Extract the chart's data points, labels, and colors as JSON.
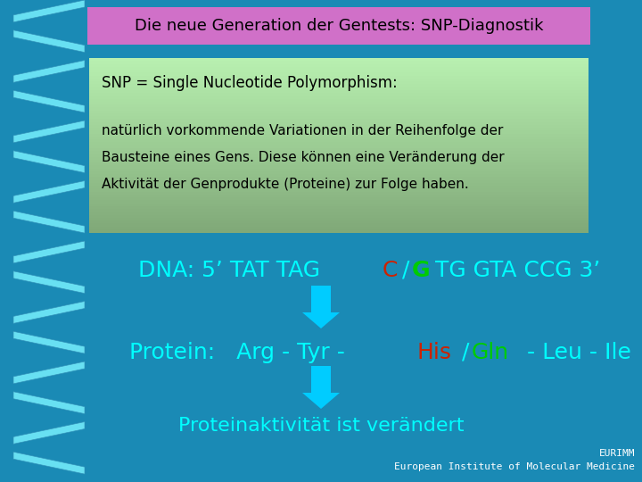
{
  "bg_color": "#1a8ab5",
  "title_text": "Die neue Generation der Gentests: SNP-Diagnostik",
  "title_box_color": "#d070c8",
  "title_text_color": "#000000",
  "info_line1": "SNP = Single Nucleotide Polymorphism:",
  "info_line2": "natürlich vorkommende Variationen in der Reihenfolge der",
  "info_line3": "Bausteine eines Gens. Diese können eine Veränderung der",
  "info_line4": "Aktivität der Genprodukte (Proteine) zur Folge haben.",
  "dna_text_color": "#00ffff",
  "dna_prefix": "DNA: 5’ TAT TAG ",
  "dna_c": "C",
  "dna_slash": "/",
  "dna_g": "G",
  "dna_suffix": "TG GTA CCG 3’",
  "dna_c_color": "#cc2200",
  "dna_g_color": "#00cc00",
  "protein_text_color": "#00ffff",
  "protein_prefix": "Protein:   Arg - Tyr - ",
  "protein_his": "His",
  "protein_slash": "/",
  "protein_gln": "Gln",
  "protein_suffix": " - Leu - Ile",
  "protein_his_color": "#cc2200",
  "protein_gln_color": "#00cc00",
  "arrow_color": "#00ccff",
  "result_text": "Proteinaktivität ist verändert",
  "result_text_color": "#00ffff",
  "footer1": "EURIMM",
  "footer2": "European Institute of Molecular Medicine",
  "footer_color": "#ffffff",
  "dna_fontsize": 18,
  "protein_fontsize": 18,
  "result_fontsize": 16,
  "title_fontsize": 13,
  "info_fontsize": 11,
  "helix_face_color": "#70e8f8",
  "helix_edge_color": "#3090b8"
}
